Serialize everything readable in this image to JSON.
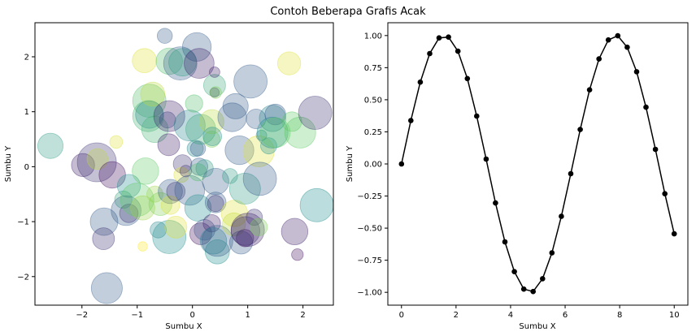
{
  "figure": {
    "suptitle": "Contoh Beberapa Grafis Acak"
  },
  "chart_data": [
    {
      "type": "scatter",
      "title": "",
      "xlabel": "Sumbu X",
      "ylabel": "Sumbu Y",
      "xlim": [
        -2.85,
        2.55
      ],
      "ylim": [
        -2.52,
        2.62
      ],
      "xticks": [
        -2,
        -1,
        0,
        1,
        2
      ],
      "yticks": [
        -2,
        -1,
        0,
        1,
        2
      ],
      "grid": false,
      "alpha": 0.3,
      "colormap": [
        "#440154",
        "#3b528b",
        "#21908d",
        "#5dc963",
        "#fde725"
      ],
      "points": [
        {
          "x": -2.57,
          "y": 0.38,
          "s": 0.9,
          "c": 0.55
        },
        {
          "x": -1.98,
          "y": 0.03,
          "s": 0.8,
          "c": 0.1
        },
        {
          "x": -1.73,
          "y": 0.08,
          "s": 1.5,
          "c": 0.15
        },
        {
          "x": -1.72,
          "y": 0.14,
          "s": 0.7,
          "c": 0.9
        },
        {
          "x": -1.45,
          "y": -0.15,
          "s": 0.95,
          "c": 0.05
        },
        {
          "x": -1.38,
          "y": 0.45,
          "s": 0.35,
          "c": 0.95
        },
        {
          "x": -1.6,
          "y": -1.0,
          "s": 1.0,
          "c": 0.3
        },
        {
          "x": -1.61,
          "y": -1.31,
          "s": 0.75,
          "c": 0.15
        },
        {
          "x": -1.55,
          "y": -2.21,
          "s": 1.15,
          "c": 0.3
        },
        {
          "x": -1.25,
          "y": -0.6,
          "s": 0.55,
          "c": 0.6
        },
        {
          "x": -1.15,
          "y": -0.35,
          "s": 0.8,
          "c": 0.5
        },
        {
          "x": -1.2,
          "y": -0.8,
          "s": 1.1,
          "c": 0.3
        },
        {
          "x": -1.15,
          "y": -0.85,
          "s": 0.6,
          "c": 0.15
        },
        {
          "x": -1.0,
          "y": -0.6,
          "s": 1.25,
          "c": 0.75
        },
        {
          "x": -0.9,
          "y": -0.75,
          "s": 0.85,
          "c": 0.85
        },
        {
          "x": -0.9,
          "y": -1.45,
          "s": 0.2,
          "c": 1.0
        },
        {
          "x": -0.87,
          "y": 1.93,
          "s": 0.85,
          "c": 0.95
        },
        {
          "x": -0.85,
          "y": -0.08,
          "s": 0.95,
          "c": 0.75
        },
        {
          "x": -0.78,
          "y": 1.2,
          "s": 1.25,
          "c": 0.7
        },
        {
          "x": -0.8,
          "y": 0.92,
          "s": 1.15,
          "c": 0.65
        },
        {
          "x": -0.78,
          "y": 0.95,
          "s": 1.0,
          "c": 0.45
        },
        {
          "x": -0.72,
          "y": 1.32,
          "s": 0.85,
          "c": 0.9
        },
        {
          "x": -0.68,
          "y": 0.68,
          "s": 0.95,
          "c": 0.65
        },
        {
          "x": -0.68,
          "y": -0.5,
          "s": 0.5,
          "c": 0.85
        },
        {
          "x": -0.58,
          "y": -0.68,
          "s": 0.8,
          "c": 0.8
        },
        {
          "x": -0.62,
          "y": -1.15,
          "s": 0.5,
          "c": 0.45
        },
        {
          "x": -0.5,
          "y": 2.38,
          "s": 0.45,
          "c": 0.3
        },
        {
          "x": -0.42,
          "y": 1.92,
          "s": 0.95,
          "c": 0.7
        },
        {
          "x": -0.45,
          "y": 0.85,
          "s": 0.5,
          "c": 0.25
        },
        {
          "x": -0.43,
          "y": 0.4,
          "s": 0.75,
          "c": 0.1
        },
        {
          "x": -0.4,
          "y": -0.45,
          "s": 0.85,
          "c": 0.3
        },
        {
          "x": -0.42,
          "y": -1.28,
          "s": 1.25,
          "c": 0.5
        },
        {
          "x": -0.3,
          "y": -1.1,
          "s": 0.75,
          "c": 0.95
        },
        {
          "x": -0.4,
          "y": -0.7,
          "s": 0.6,
          "c": 0.95
        },
        {
          "x": -0.42,
          "y": 0.92,
          "s": 1.15,
          "c": 0.1
        },
        {
          "x": -0.3,
          "y": -0.45,
          "s": 0.6,
          "c": 0.15
        },
        {
          "x": -0.22,
          "y": 1.88,
          "s": 1.25,
          "c": 0.3
        },
        {
          "x": -0.18,
          "y": 1.9,
          "s": 1.0,
          "c": 0.55
        },
        {
          "x": -0.18,
          "y": 0.05,
          "s": 0.6,
          "c": 0.15
        },
        {
          "x": -0.2,
          "y": -0.15,
          "s": 0.45,
          "c": 0.95
        },
        {
          "x": -0.12,
          "y": -0.08,
          "s": 0.3,
          "c": 0.15
        },
        {
          "x": -0.05,
          "y": 0.75,
          "s": 1.15,
          "c": 0.45
        },
        {
          "x": -0.05,
          "y": -0.43,
          "s": 1.1,
          "c": 0.3
        },
        {
          "x": 0.03,
          "y": 1.15,
          "s": 0.55,
          "c": 0.7
        },
        {
          "x": 0.08,
          "y": 2.18,
          "s": 1.05,
          "c": 0.3
        },
        {
          "x": 0.05,
          "y": 0.33,
          "s": 0.5,
          "c": 0.45
        },
        {
          "x": 0.1,
          "y": 0.33,
          "s": 0.45,
          "c": 0.3
        },
        {
          "x": 0.1,
          "y": -0.75,
          "s": 0.95,
          "c": 0.5
        },
        {
          "x": 0.12,
          "y": 1.88,
          "s": 1.1,
          "c": 0.1
        },
        {
          "x": 0.12,
          "y": 0.0,
          "s": 0.55,
          "c": 0.3
        },
        {
          "x": 0.15,
          "y": 0.68,
          "s": 1.1,
          "c": 0.6
        },
        {
          "x": 0.1,
          "y": -0.1,
          "s": 0.55,
          "c": 0.7
        },
        {
          "x": 0.15,
          "y": -1.22,
          "s": 0.75,
          "c": 0.05
        },
        {
          "x": 0.22,
          "y": -0.03,
          "s": 0.55,
          "c": 0.55
        },
        {
          "x": 0.22,
          "y": -1.15,
          "s": 0.7,
          "c": 0.25
        },
        {
          "x": 0.35,
          "y": 0.82,
          "s": 0.85,
          "c": 0.9
        },
        {
          "x": 0.35,
          "y": 0.5,
          "s": 0.5,
          "c": 0.8
        },
        {
          "x": 0.36,
          "y": 0.55,
          "s": 0.6,
          "c": 0.5
        },
        {
          "x": 0.35,
          "y": -1.03,
          "s": 0.55,
          "c": 0.1
        },
        {
          "x": 0.38,
          "y": -1.35,
          "s": 0.95,
          "c": 0.45
        },
        {
          "x": 0.4,
          "y": 1.48,
          "s": 0.75,
          "c": 0.6
        },
        {
          "x": 0.4,
          "y": 1.35,
          "s": 0.2,
          "c": 0.15
        },
        {
          "x": 0.42,
          "y": 1.35,
          "s": 0.3,
          "c": 0.8
        },
        {
          "x": 0.4,
          "y": 1.72,
          "s": 0.25,
          "c": 0.1
        },
        {
          "x": 0.42,
          "y": -0.27,
          "s": 0.95,
          "c": 0.3
        },
        {
          "x": 0.42,
          "y": -0.65,
          "s": 0.7,
          "c": 0.3
        },
        {
          "x": 0.42,
          "y": -0.67,
          "s": 0.5,
          "c": 0.15
        },
        {
          "x": 0.45,
          "y": -1.55,
          "s": 0.85,
          "c": 0.5
        },
        {
          "x": 0.45,
          "y": -1.35,
          "s": 1.15,
          "c": 0.3
        },
        {
          "x": 0.68,
          "y": -0.17,
          "s": 0.45,
          "c": 0.55
        },
        {
          "x": 0.72,
          "y": 0.9,
          "s": 1.05,
          "c": 0.3
        },
        {
          "x": 0.75,
          "y": -1.05,
          "s": 0.8,
          "c": 0.9
        },
        {
          "x": 0.76,
          "y": -0.85,
          "s": 0.95,
          "c": 0.95
        },
        {
          "x": 0.78,
          "y": 1.1,
          "s": 0.9,
          "c": 0.3
        },
        {
          "x": 0.85,
          "y": 0.3,
          "s": 1.05,
          "c": 0.3
        },
        {
          "x": 0.88,
          "y": -1.38,
          "s": 0.8,
          "c": 0.3
        },
        {
          "x": 0.95,
          "y": -0.4,
          "s": 1.15,
          "c": 0.55
        },
        {
          "x": 0.95,
          "y": -1.3,
          "s": 0.55,
          "c": 0.05
        },
        {
          "x": 0.96,
          "y": -1.17,
          "s": 1.05,
          "c": 0.15
        },
        {
          "x": 1.0,
          "y": -1.15,
          "s": 1.25,
          "c": 0.1
        },
        {
          "x": 1.05,
          "y": 1.55,
          "s": 1.25,
          "c": 0.3
        },
        {
          "x": 1.12,
          "y": -0.92,
          "s": 0.5,
          "c": 0.15
        },
        {
          "x": 1.15,
          "y": 0.87,
          "s": 0.65,
          "c": 0.3
        },
        {
          "x": 1.2,
          "y": 0.28,
          "s": 1.15,
          "c": 0.95
        },
        {
          "x": 1.2,
          "y": -1.1,
          "s": 0.55,
          "c": 0.8
        },
        {
          "x": 1.22,
          "y": -0.22,
          "s": 1.25,
          "c": 0.3
        },
        {
          "x": 1.25,
          "y": 0.57,
          "s": 0.25,
          "c": 0.45
        },
        {
          "x": 1.38,
          "y": 0.38,
          "s": 0.5,
          "c": 0.5
        },
        {
          "x": 1.45,
          "y": 0.88,
          "s": 0.95,
          "c": 0.45
        },
        {
          "x": 1.45,
          "y": 0.62,
          "s": 1.15,
          "c": 0.5
        },
        {
          "x": 1.5,
          "y": 0.95,
          "s": 0.7,
          "c": 0.3
        },
        {
          "x": 1.5,
          "y": 0.62,
          "s": 1.1,
          "c": 0.75
        },
        {
          "x": 1.75,
          "y": 1.88,
          "s": 0.8,
          "c": 0.95
        },
        {
          "x": 1.8,
          "y": 0.82,
          "s": 0.65,
          "c": 0.75
        },
        {
          "x": 1.85,
          "y": -1.18,
          "s": 0.95,
          "c": 0.1
        },
        {
          "x": 1.9,
          "y": -1.6,
          "s": 0.3,
          "c": 0.05
        },
        {
          "x": 1.95,
          "y": 0.62,
          "s": 1.15,
          "c": 0.75
        },
        {
          "x": 2.22,
          "y": 0.98,
          "s": 1.25,
          "c": 0.15
        },
        {
          "x": 2.25,
          "y": -0.7,
          "s": 1.25,
          "c": 0.5
        }
      ]
    },
    {
      "type": "line",
      "title": "",
      "xlabel": "Sumbu X",
      "ylabel": "Sumbu Y",
      "xlim": [
        -0.5,
        10.5
      ],
      "ylim": [
        -1.1,
        1.1
      ],
      "xticks": [
        0,
        2,
        4,
        6,
        8,
        10
      ],
      "xtick_labels": [
        "0",
        "2",
        "4",
        "6",
        "8",
        "10"
      ],
      "yticks": [
        1.0,
        0.75,
        0.5,
        0.25,
        0.0,
        -0.25,
        -0.5,
        -0.75,
        -1.0
      ],
      "ytick_labels": [
        "1.00",
        "0.75",
        "0.50",
        "0.25",
        "0.00",
        "−0.25",
        "−0.50",
        "−0.75",
        "−1.00"
      ],
      "grid": false,
      "color": "#000000",
      "marker": "circle",
      "series": [
        {
          "x": [
            0,
            0.345,
            0.69,
            1.034,
            1.379,
            1.724,
            2.069,
            2.414,
            2.759,
            3.103,
            3.448,
            3.793,
            4.138,
            4.483,
            4.828,
            5.172,
            5.517,
            5.862,
            6.207,
            6.552,
            6.897,
            7.241,
            7.586,
            7.931,
            8.276,
            8.621,
            8.966,
            9.31,
            9.655,
            10
          ],
          "y": [
            0.0,
            0.338,
            0.637,
            0.86,
            0.982,
            0.988,
            0.878,
            0.665,
            0.373,
            0.038,
            -0.304,
            -0.607,
            -0.839,
            -0.975,
            -0.994,
            -0.894,
            -0.692,
            -0.408,
            -0.076,
            0.268,
            0.577,
            0.818,
            0.966,
            0.998,
            0.909,
            0.718,
            0.442,
            0.114,
            -0.232,
            -0.544
          ]
        }
      ]
    }
  ]
}
